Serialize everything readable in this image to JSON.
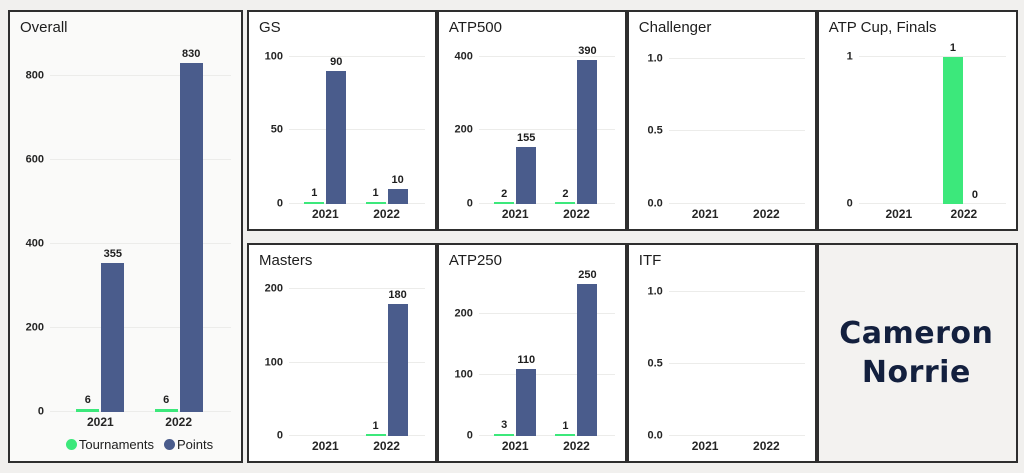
{
  "player": {
    "line1": "Cameron",
    "line2": "Norrie"
  },
  "colors": {
    "tournaments": "#3ce87b",
    "points": "#4a5c8c",
    "page_bg": "#f1f0ee",
    "panel_border": "#2e2e2e",
    "overall_panel_bg": "#fafaf9",
    "name_panel_bg": "#f3f2f0",
    "name_text": "#13203e",
    "gridline": "#ececea"
  },
  "legend": {
    "items": [
      {
        "label": "Tournaments",
        "series": "tournaments"
      },
      {
        "label": "Points",
        "series": "points"
      }
    ]
  },
  "chart_data": [
    {
      "id": "overall",
      "type": "bar",
      "title": "Overall",
      "legend": true,
      "categories": [
        "2021",
        "2022"
      ],
      "series": [
        {
          "name": "Tournaments",
          "values": [
            6,
            6
          ]
        },
        {
          "name": "Points",
          "values": [
            355,
            830
          ]
        }
      ],
      "yticks": [
        {
          "v": 0,
          "label": "0"
        },
        {
          "v": 200,
          "label": "200"
        },
        {
          "v": 400,
          "label": "400"
        },
        {
          "v": 600,
          "label": "600"
        },
        {
          "v": 800,
          "label": "800"
        }
      ],
      "ylim": [
        0,
        880
      ]
    },
    {
      "id": "gs",
      "type": "bar",
      "title": "GS",
      "categories": [
        "2021",
        "2022"
      ],
      "series": [
        {
          "name": "Tournaments",
          "values": [
            1,
            1
          ]
        },
        {
          "name": "Points",
          "values": [
            90,
            10
          ]
        }
      ],
      "yticks": [
        {
          "v": 0,
          "label": "0"
        },
        {
          "v": 50,
          "label": "50"
        },
        {
          "v": 100,
          "label": "100"
        }
      ],
      "ylim": [
        0,
        110
      ]
    },
    {
      "id": "atp500",
      "type": "bar",
      "title": "ATP500",
      "categories": [
        "2021",
        "2022"
      ],
      "series": [
        {
          "name": "Tournaments",
          "values": [
            2,
            2
          ]
        },
        {
          "name": "Points",
          "values": [
            155,
            390
          ]
        }
      ],
      "yticks": [
        {
          "v": 0,
          "label": "0"
        },
        {
          "v": 200,
          "label": "200"
        },
        {
          "v": 400,
          "label": "400"
        }
      ],
      "ylim": [
        0,
        440
      ]
    },
    {
      "id": "challenger",
      "type": "bar",
      "title": "Challenger",
      "categories": [
        "2021",
        "2022"
      ],
      "series": [
        {
          "name": "Tournaments",
          "values": [
            null,
            null
          ]
        },
        {
          "name": "Points",
          "values": [
            null,
            null
          ]
        }
      ],
      "yticks": [
        {
          "v": 0,
          "label": "0.0"
        },
        {
          "v": 0.5,
          "label": "0.5"
        },
        {
          "v": 1,
          "label": "1.0"
        }
      ],
      "ylim": [
        0,
        1.12
      ]
    },
    {
      "id": "atpcup",
      "type": "bar",
      "title": "ATP Cup, Finals",
      "categories": [
        "2021",
        "2022"
      ],
      "series": [
        {
          "name": "Tournaments",
          "values": [
            null,
            1
          ]
        },
        {
          "name": "Points",
          "values": [
            null,
            0
          ]
        }
      ],
      "yticks": [
        {
          "v": 0,
          "label": "0"
        },
        {
          "v": 1,
          "label": "1"
        }
      ],
      "ylim": [
        0,
        1.1
      ]
    },
    {
      "id": "masters",
      "type": "bar",
      "title": "Masters",
      "categories": [
        "2021",
        "2022"
      ],
      "series": [
        {
          "name": "Tournaments",
          "values": [
            null,
            1
          ]
        },
        {
          "name": "Points",
          "values": [
            null,
            180
          ]
        }
      ],
      "yticks": [
        {
          "v": 0,
          "label": "0"
        },
        {
          "v": 100,
          "label": "100"
        },
        {
          "v": 200,
          "label": "200"
        }
      ],
      "ylim": [
        0,
        220
      ]
    },
    {
      "id": "atp250",
      "type": "bar",
      "title": "ATP250",
      "categories": [
        "2021",
        "2022"
      ],
      "series": [
        {
          "name": "Tournaments",
          "values": [
            3,
            1
          ]
        },
        {
          "name": "Points",
          "values": [
            110,
            250
          ]
        }
      ],
      "yticks": [
        {
          "v": 0,
          "label": "0"
        },
        {
          "v": 100,
          "label": "100"
        },
        {
          "v": 200,
          "label": "200"
        }
      ],
      "ylim": [
        0,
        265
      ]
    },
    {
      "id": "itf",
      "type": "bar",
      "title": "ITF",
      "categories": [
        "2021",
        "2022"
      ],
      "series": [
        {
          "name": "Tournaments",
          "values": [
            null,
            null
          ]
        },
        {
          "name": "Points",
          "values": [
            null,
            null
          ]
        }
      ],
      "yticks": [
        {
          "v": 0,
          "label": "0.0"
        },
        {
          "v": 0.5,
          "label": "0.5"
        },
        {
          "v": 1,
          "label": "1.0"
        }
      ],
      "ylim": [
        0,
        1.12
      ]
    }
  ]
}
